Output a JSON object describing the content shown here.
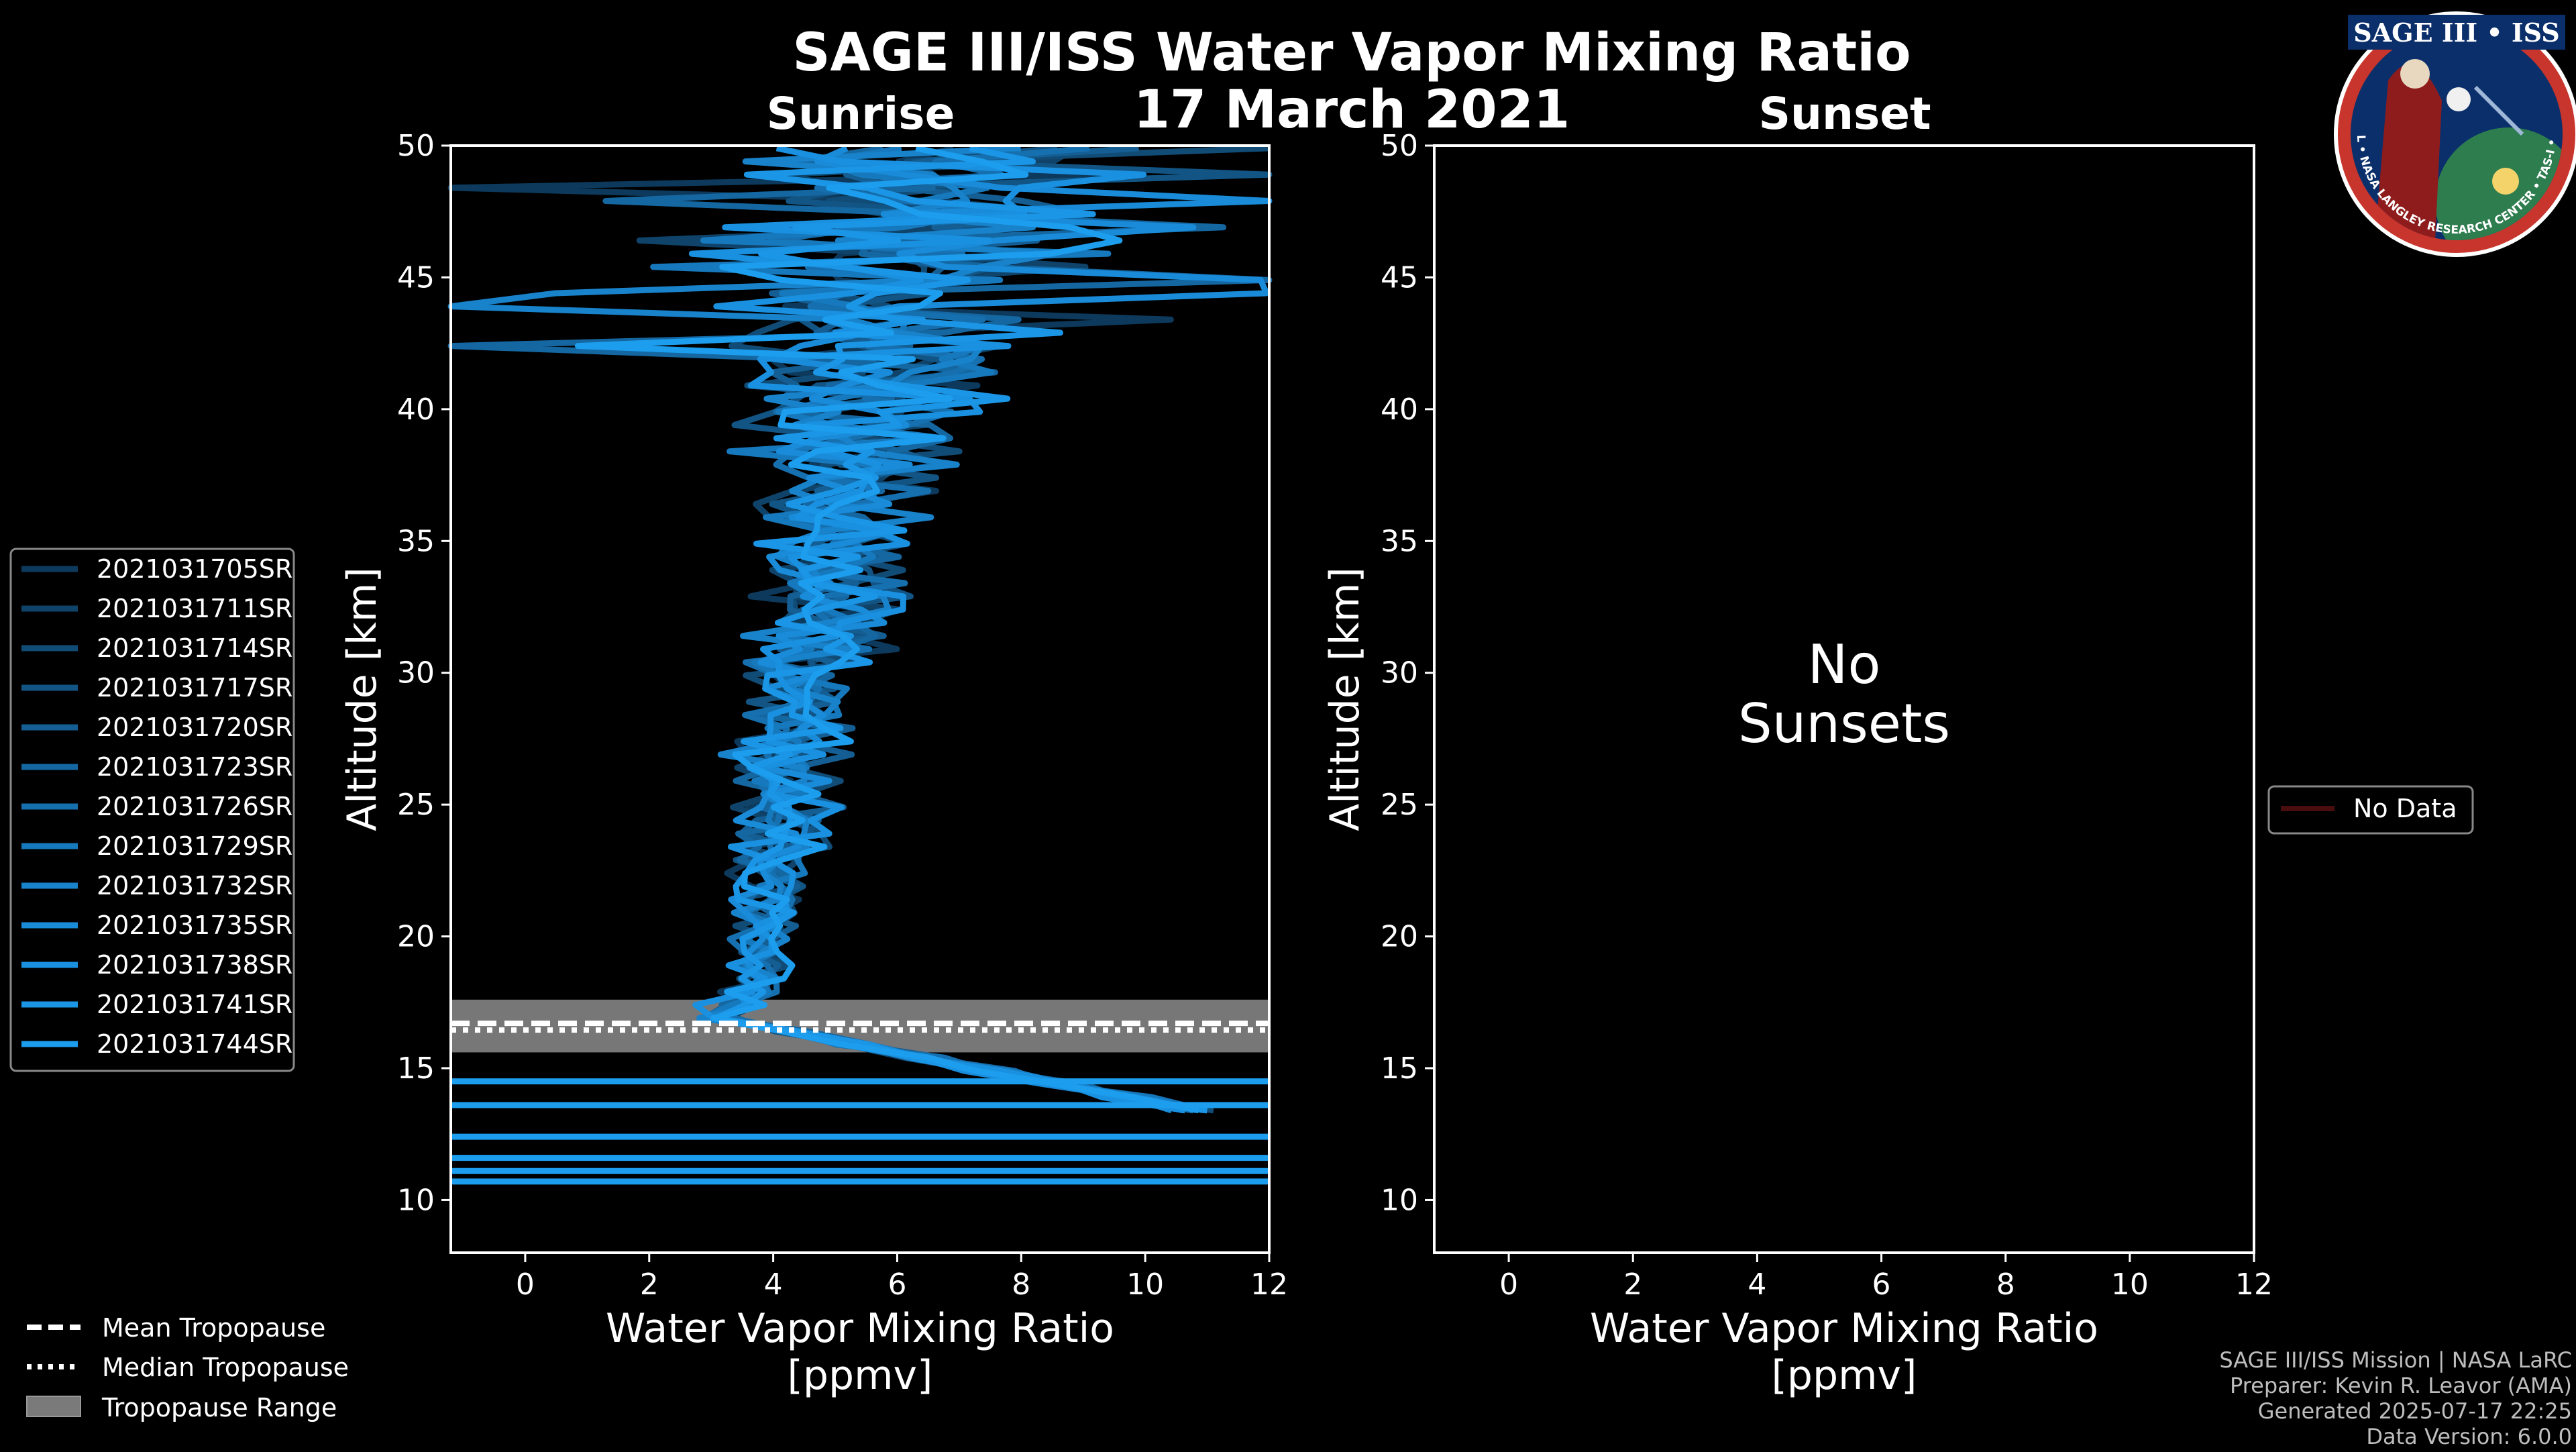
{
  "chart_data": [
    {
      "type": "line",
      "panel": "sunrise",
      "title": "SAGE III/ISS Water Vapor Mixing Ratio",
      "date": "17 March 2021",
      "subtitle": "Sunrise",
      "xlabel": "Water Vapor Mixing Ratio",
      "xlabel_units": "[ppmv]",
      "ylabel": "Altitude [km]",
      "xlim": [
        -1.2,
        12
      ],
      "ylim": [
        8,
        50
      ],
      "xticks": [
        0,
        2,
        4,
        6,
        8,
        10,
        12
      ],
      "yticks": [
        10,
        15,
        20,
        25,
        30,
        35,
        40,
        45,
        50
      ],
      "series_colors": [
        "#0d3a5c",
        "#0f4369",
        "#114c77",
        "#125585",
        "#145e93",
        "#1567a1",
        "#1670af",
        "#1779bd",
        "#1882cb",
        "#198bd9",
        "#1a91e0",
        "#1b96e6",
        "#1c9ded"
      ],
      "series": [
        {
          "name": "2021031705SR"
        },
        {
          "name": "2021031711SR"
        },
        {
          "name": "2021031714SR"
        },
        {
          "name": "2021031717SR"
        },
        {
          "name": "2021031720SR"
        },
        {
          "name": "2021031723SR"
        },
        {
          "name": "2021031726SR"
        },
        {
          "name": "2021031729SR"
        },
        {
          "name": "2021031732SR"
        },
        {
          "name": "2021031735SR"
        },
        {
          "name": "2021031738SR"
        },
        {
          "name": "2021031741SR"
        },
        {
          "name": "2021031744SR"
        }
      ],
      "tropopause": {
        "mean": 16.6,
        "median": 16.6,
        "range": [
          15.6,
          17.6
        ]
      },
      "legend": {
        "mean_label": "Mean Tropopause",
        "median_label": "Median Tropopause",
        "range_label": "Tropopause Range"
      }
    },
    {
      "type": "line",
      "panel": "sunset",
      "subtitle": "Sunset",
      "xlabel": "Water Vapor Mixing Ratio",
      "xlabel_units": "[ppmv]",
      "ylabel": "Altitude [km]",
      "xlim": [
        -1.2,
        12
      ],
      "ylim": [
        8,
        50
      ],
      "xticks": [
        0,
        2,
        4,
        6,
        8,
        10,
        12
      ],
      "yticks": [
        10,
        15,
        20,
        25,
        30,
        35,
        40,
        45,
        50
      ],
      "no_data_line1": "No",
      "no_data_line2": "Sunsets",
      "legend_label": "No Data",
      "legend_color": "#4a0d0d"
    }
  ],
  "footer": {
    "line1": "SAGE III/ISS Mission | NASA LaRC",
    "line2": "Preparer: Kevin R. Leavor (AMA)",
    "line3": "Generated 2025-07-17 22:25",
    "line4": "Data Version: 6.0.0"
  },
  "logo": {
    "title": "SAGE III • ISS",
    "ring_text": "BALL • NASA LANGLEY RESEARCH CENTER • TAS-I • ESA"
  }
}
